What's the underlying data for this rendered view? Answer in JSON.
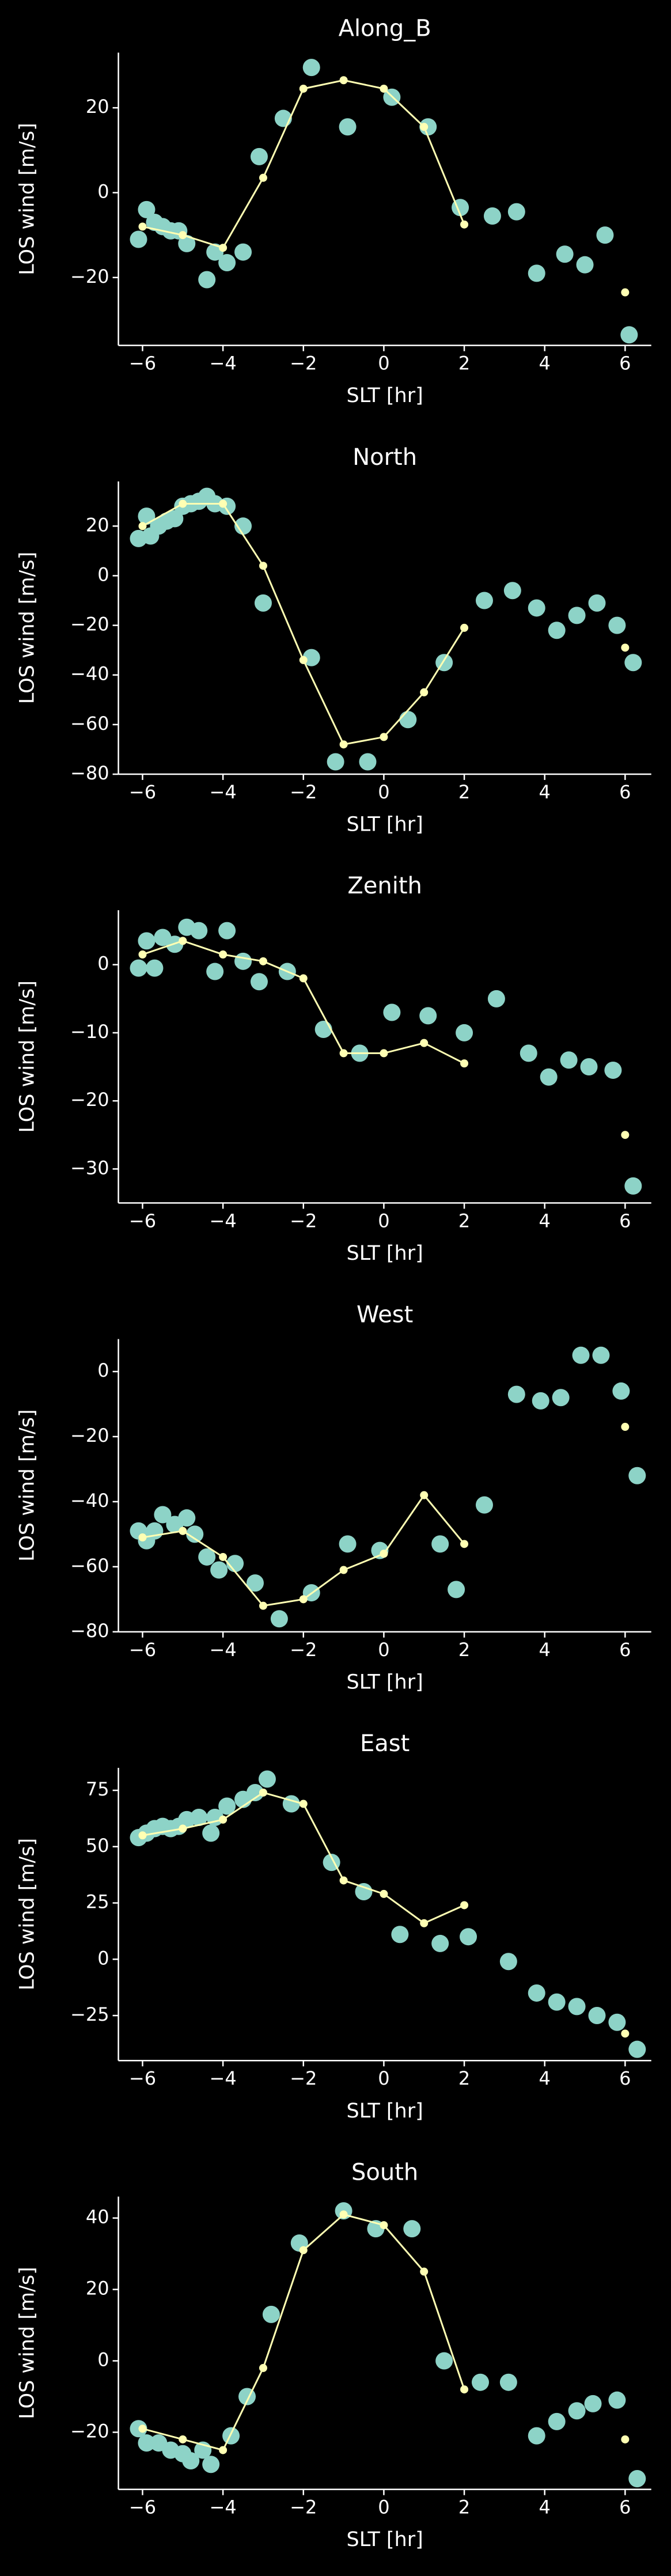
{
  "chart_data": [
    {
      "type": "scatter",
      "title": "Along_B",
      "xlabel": "SLT [hr]",
      "ylabel": "LOS wind [m/s]",
      "xlim": [
        -6.6,
        6.65
      ],
      "ylim": [
        -36,
        33
      ],
      "xticks": [
        {
          "value": -6,
          "label": "−6"
        },
        {
          "value": -4,
          "label": "−4"
        },
        {
          "value": -2,
          "label": "−2"
        },
        0,
        2,
        4,
        6
      ],
      "yticks": [
        {
          "value": -20,
          "label": "−20"
        },
        0,
        20
      ],
      "series": [
        {
          "mode": "markers",
          "color": "#8dd3c7",
          "x": [
            -6.1,
            -5.9,
            -5.7,
            -5.5,
            -5.3,
            -5.1,
            -4.9,
            -4.4,
            -4.2,
            -3.9,
            -3.5,
            -3.1,
            -2.5,
            -1.8,
            -0.9,
            0.2,
            1.1,
            1.9,
            2.7,
            3.3,
            3.8,
            4.5,
            5,
            5.5,
            6.1
          ],
          "values": [
            -11,
            -4,
            -7,
            -8,
            -9,
            -9,
            -12,
            -20.5,
            -14,
            -16.5,
            -14,
            8.5,
            17.5,
            29.5,
            15.5,
            22.5,
            15.5,
            -3.5,
            -5.5,
            -4.5,
            -19,
            -14.5,
            -17,
            -10,
            -33.5
          ]
        },
        {
          "mode": "lines+markers",
          "color": "#ffffb3",
          "x": [
            -6,
            -5,
            -4,
            -3,
            -2,
            -1,
            0,
            1,
            2,
            3,
            4,
            5,
            6
          ],
          "values": [
            -8,
            -10,
            -13,
            3.5,
            24.5,
            26.5,
            24.5,
            15.5,
            -7.5,
            null,
            null,
            null,
            -23.5
          ]
        }
      ]
    },
    {
      "type": "scatter",
      "title": "North",
      "xlabel": "SLT [hr]",
      "ylabel": "LOS wind [m/s]",
      "xlim": [
        -6.6,
        6.65
      ],
      "ylim": [
        -80,
        38
      ],
      "xticks": [
        {
          "value": -6,
          "label": "−6"
        },
        {
          "value": -4,
          "label": "−4"
        },
        {
          "value": -2,
          "label": "−2"
        },
        0,
        2,
        4,
        6
      ],
      "yticks": [
        {
          "value": -80,
          "label": "−80"
        },
        {
          "value": -60,
          "label": "−60"
        },
        {
          "value": -40,
          "label": "−40"
        },
        {
          "value": -20,
          "label": "−20"
        },
        0,
        20
      ],
      "series": [
        {
          "mode": "markers",
          "color": "#8dd3c7",
          "x": [
            -6.1,
            -5.9,
            -5.8,
            -5.6,
            -5.4,
            -5.2,
            -5,
            -4.8,
            -4.6,
            -4.4,
            -4.2,
            -3.9,
            -3.5,
            -3,
            -1.8,
            -1.2,
            -0.4,
            0.6,
            1.5,
            2.5,
            3.2,
            3.8,
            4.3,
            4.8,
            5.3,
            5.8,
            6.2
          ],
          "values": [
            15,
            24,
            16,
            20,
            22,
            23,
            28,
            29,
            30,
            32,
            29,
            28,
            20,
            -11,
            -33,
            -75,
            -75,
            -58,
            -35,
            -10,
            -6,
            -13,
            -22,
            -16,
            -11,
            -20,
            -35
          ]
        },
        {
          "mode": "lines+markers",
          "color": "#ffffb3",
          "x": [
            -6,
            -5,
            -4,
            -3,
            -2,
            -1,
            0,
            1,
            2,
            3,
            4,
            5,
            6
          ],
          "values": [
            20,
            29,
            29,
            4,
            -34,
            -68,
            -65,
            -47,
            -21,
            null,
            null,
            null,
            -29
          ]
        }
      ]
    },
    {
      "type": "scatter",
      "title": "Zenith",
      "xlabel": "SLT [hr]",
      "ylabel": "LOS wind [m/s]",
      "xlim": [
        -6.6,
        6.65
      ],
      "ylim": [
        -35,
        8
      ],
      "xticks": [
        {
          "value": -6,
          "label": "−6"
        },
        {
          "value": -4,
          "label": "−4"
        },
        {
          "value": -2,
          "label": "−2"
        },
        0,
        2,
        4,
        6
      ],
      "yticks": [
        {
          "value": -30,
          "label": "−30"
        },
        {
          "value": -20,
          "label": "−20"
        },
        {
          "value": -10,
          "label": "−10"
        },
        0
      ],
      "series": [
        {
          "mode": "markers",
          "color": "#8dd3c7",
          "x": [
            -6.1,
            -5.9,
            -5.7,
            -5.5,
            -5.2,
            -4.9,
            -4.6,
            -4.2,
            -3.9,
            -3.5,
            -3.1,
            -2.4,
            -1.5,
            -0.6,
            0.2,
            1.1,
            2,
            2.8,
            3.6,
            4.1,
            4.6,
            5.1,
            5.7,
            6.2
          ],
          "values": [
            -0.5,
            3.5,
            -0.5,
            4,
            3,
            5.5,
            5,
            -1,
            5,
            0.5,
            -2.5,
            -1,
            -9.5,
            -13,
            -7,
            -7.5,
            -10,
            -5,
            -13,
            -16.5,
            -14,
            -15,
            -15.5,
            -32.5
          ]
        },
        {
          "mode": "lines+markers",
          "color": "#ffffb3",
          "x": [
            -6,
            -5,
            -4,
            -3,
            -2,
            -1,
            0,
            1,
            2,
            3,
            4,
            5,
            6
          ],
          "values": [
            1.5,
            3.5,
            1.5,
            0.5,
            -2,
            -13,
            -13,
            -11.5,
            -14.5,
            null,
            null,
            null,
            -25
          ]
        }
      ]
    },
    {
      "type": "scatter",
      "title": "West",
      "xlabel": "SLT [hr]",
      "ylabel": "LOS wind [m/s]",
      "xlim": [
        -6.6,
        6.65
      ],
      "ylim": [
        -80,
        10
      ],
      "xticks": [
        {
          "value": -6,
          "label": "−6"
        },
        {
          "value": -4,
          "label": "−4"
        },
        {
          "value": -2,
          "label": "−2"
        },
        0,
        2,
        4,
        6
      ],
      "yticks": [
        {
          "value": -80,
          "label": "−80"
        },
        {
          "value": -60,
          "label": "−60"
        },
        {
          "value": -40,
          "label": "−40"
        },
        {
          "value": -20,
          "label": "−20"
        },
        0
      ],
      "series": [
        {
          "mode": "markers",
          "color": "#8dd3c7",
          "x": [
            -6.1,
            -5.9,
            -5.7,
            -5.5,
            -5.2,
            -4.9,
            -4.7,
            -4.4,
            -4.1,
            -3.7,
            -3.2,
            -2.6,
            -1.8,
            -0.9,
            -0.1,
            1.4,
            1.8,
            2.5,
            3.3,
            3.9,
            4.4,
            4.9,
            5.4,
            5.9,
            6.3
          ],
          "values": [
            -49,
            -52,
            -49,
            -44,
            -47,
            -45,
            -50,
            -57,
            -61,
            -59,
            -65,
            -76,
            -68,
            -53,
            -55,
            -53,
            -67,
            -41,
            -7,
            -9,
            -8,
            5,
            5,
            -6,
            -32
          ]
        },
        {
          "mode": "lines+markers",
          "color": "#ffffb3",
          "x": [
            -6,
            -5,
            -4,
            -3,
            -2,
            -1,
            0,
            1,
            2,
            3,
            4,
            5,
            6
          ],
          "values": [
            -51,
            -49,
            -57,
            -72,
            -70,
            -61,
            -56,
            -38,
            -53,
            null,
            null,
            null,
            -17
          ]
        }
      ]
    },
    {
      "type": "scatter",
      "title": "East",
      "xlabel": "SLT [hr]",
      "ylabel": "LOS wind [m/s]",
      "xlim": [
        -6.6,
        6.65
      ],
      "ylim": [
        -45,
        85
      ],
      "xticks": [
        {
          "value": -6,
          "label": "−6"
        },
        {
          "value": -4,
          "label": "−4"
        },
        {
          "value": -2,
          "label": "−2"
        },
        0,
        2,
        4,
        6
      ],
      "yticks": [
        {
          "value": -25,
          "label": "−25"
        },
        0,
        25,
        50,
        75
      ],
      "series": [
        {
          "mode": "markers",
          "color": "#8dd3c7",
          "x": [
            -6.1,
            -5.9,
            -5.7,
            -5.5,
            -5.3,
            -5.1,
            -4.9,
            -4.6,
            -4.3,
            -4.2,
            -3.9,
            -3.5,
            -3.2,
            -2.9,
            -2.3,
            -1.3,
            -0.5,
            0.4,
            1.4,
            2.1,
            3.1,
            3.8,
            4.3,
            4.8,
            5.3,
            5.8,
            6.3
          ],
          "values": [
            54,
            56,
            58,
            59,
            58,
            59,
            62,
            63,
            56,
            63,
            68,
            71,
            74,
            80,
            69,
            43,
            30,
            11,
            7,
            10,
            -1,
            -15,
            -19,
            -21,
            -25,
            -28,
            -40
          ]
        },
        {
          "mode": "lines+markers",
          "color": "#ffffb3",
          "x": [
            -6,
            -5,
            -4,
            -3,
            -2,
            -1,
            0,
            1,
            2,
            3,
            4,
            5,
            6
          ],
          "values": [
            55,
            58,
            62,
            74,
            69,
            35,
            29,
            16,
            24,
            null,
            null,
            null,
            -33
          ]
        }
      ]
    },
    {
      "type": "scatter",
      "title": "South",
      "xlabel": "SLT [hr]",
      "ylabel": "LOS wind [m/s]",
      "xlim": [
        -6.6,
        6.65
      ],
      "ylim": [
        -36,
        46
      ],
      "xticks": [
        {
          "value": -6,
          "label": "−6"
        },
        {
          "value": -4,
          "label": "−4"
        },
        {
          "value": -2,
          "label": "−2"
        },
        0,
        2,
        4,
        6
      ],
      "yticks": [
        {
          "value": -20,
          "label": "−20"
        },
        0,
        20,
        40
      ],
      "series": [
        {
          "mode": "markers",
          "color": "#8dd3c7",
          "x": [
            -6.1,
            -5.9,
            -5.6,
            -5.3,
            -5,
            -4.8,
            -4.5,
            -4.3,
            -3.8,
            -3.4,
            -2.8,
            -2.1,
            -1,
            -0.2,
            0.7,
            1.5,
            2.4,
            3.1,
            3.8,
            4.3,
            4.8,
            5.2,
            5.8,
            6.3
          ],
          "values": [
            -19,
            -23,
            -23,
            -25,
            -26,
            -28,
            -25,
            -29,
            -21,
            -10,
            13,
            33,
            42,
            37,
            37,
            0,
            -6,
            -6,
            -21,
            -17,
            -14,
            -12,
            -11,
            -33
          ]
        },
        {
          "mode": "lines+markers",
          "color": "#ffffb3",
          "x": [
            -6,
            -5,
            -4,
            -3,
            -2,
            -1,
            0,
            1,
            2,
            3,
            4,
            5,
            6
          ],
          "values": [
            -19,
            -22,
            -25,
            -2,
            31,
            41,
            38,
            25,
            -8,
            null,
            null,
            null,
            -22
          ]
        }
      ]
    }
  ]
}
